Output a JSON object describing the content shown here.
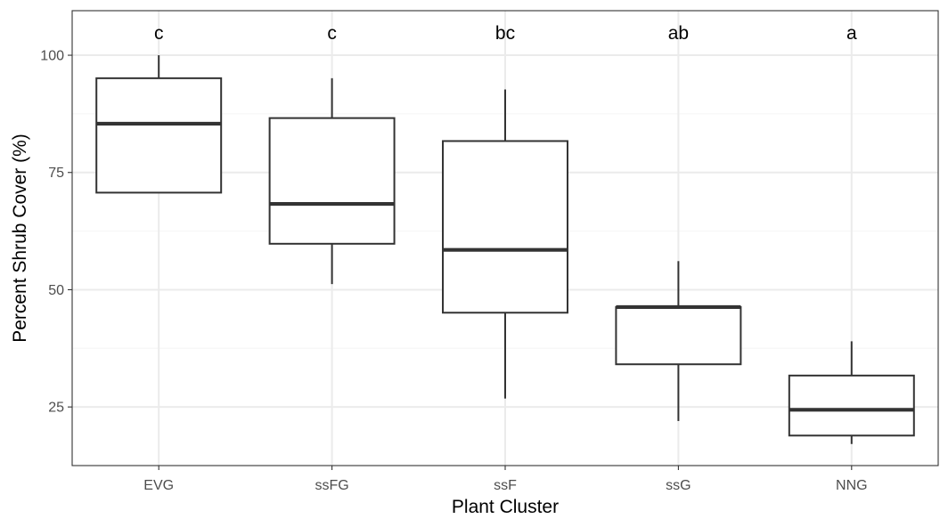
{
  "chart_data": {
    "type": "boxplot",
    "title": "",
    "xlabel": "Plant Cluster",
    "ylabel": "Percent Shrub Cover (%)",
    "ylim": [
      12.5,
      109.5
    ],
    "yticks": [
      25,
      50,
      75,
      100
    ],
    "ytick_labels": [
      "25",
      "50",
      "75",
      "100"
    ],
    "grid": true,
    "legend": "none",
    "categories": [
      "EVG",
      "ssFG",
      "ssF",
      "ssG",
      "NNG"
    ],
    "boxes": [
      {
        "category": "EVG",
        "whisker_low": 70.7,
        "q1": 70.7,
        "median": 85.4,
        "q3": 95.1,
        "whisker_high": 100,
        "letter": "c"
      },
      {
        "category": "ssFG",
        "whisker_low": 51.2,
        "q1": 59.8,
        "median": 68.3,
        "q3": 86.6,
        "whisker_high": 95.1,
        "letter": "c"
      },
      {
        "category": "ssF",
        "whisker_low": 26.8,
        "q1": 45.1,
        "median": 58.5,
        "q3": 81.7,
        "whisker_high": 92.7,
        "letter": "bc"
      },
      {
        "category": "ssG",
        "whisker_low": 22.0,
        "q1": 34.1,
        "median": 46.3,
        "q3": 46.3,
        "whisker_high": 56.1,
        "letter": "ab"
      },
      {
        "category": "NNG",
        "whisker_low": 17.1,
        "q1": 18.9,
        "median": 24.4,
        "q3": 31.7,
        "whisker_high": 39.0,
        "letter": "a"
      }
    ],
    "colors": {
      "box_fill": "#ffffff",
      "box_stroke": "#333333",
      "grid_major": "#ebebeb",
      "grid_minor": "#f5f5f5",
      "panel_border": "#333333",
      "tick_text": "#4d4d4d"
    }
  }
}
